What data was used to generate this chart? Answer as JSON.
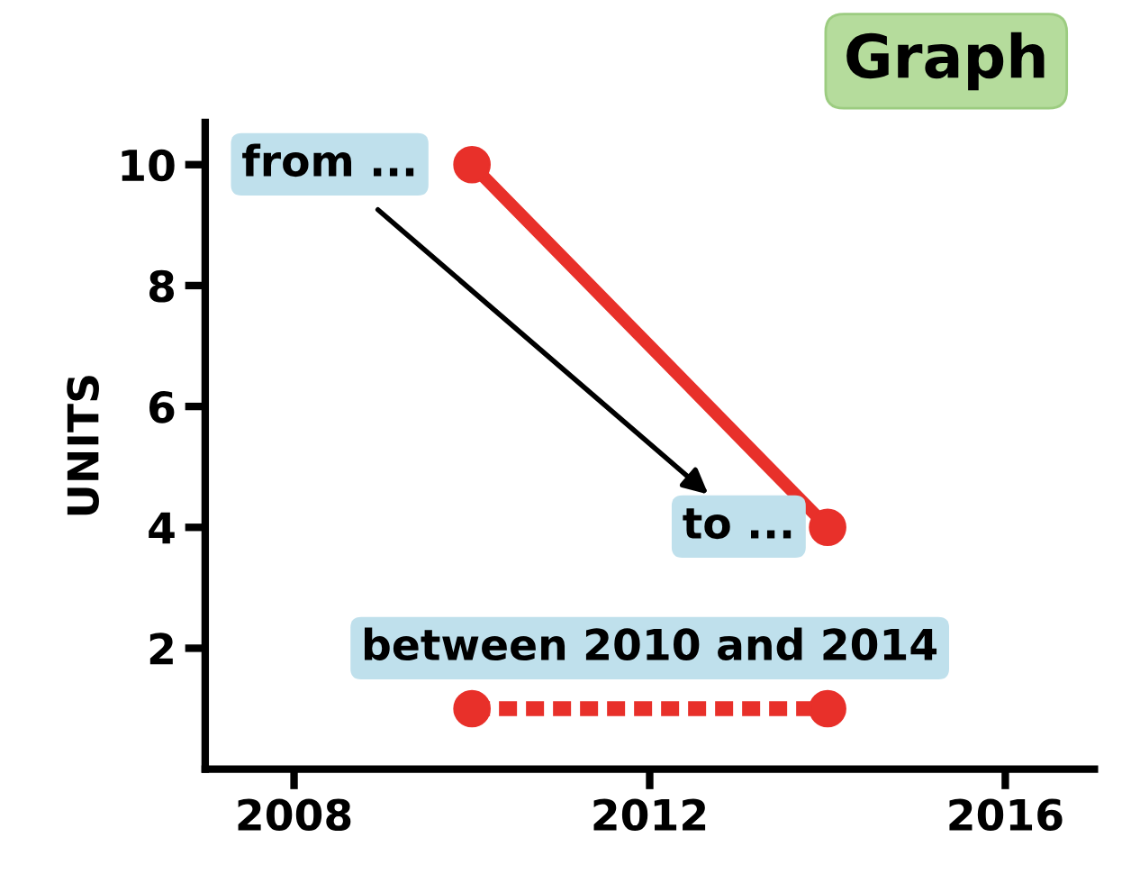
{
  "chart_data": {
    "type": "line",
    "title": "Graph",
    "ylabel": "UNITS",
    "xlim": [
      "2007",
      "2017"
    ],
    "xticks": [
      "2008",
      "2012",
      "2016"
    ],
    "ylim": [
      0,
      10.7
    ],
    "yticks": [
      2,
      4,
      6,
      8,
      10
    ],
    "series": [
      {
        "color": "#e8302a",
        "x": [
          "2010",
          "2014"
        ],
        "values": [
          10,
          4
        ],
        "line_style": "solid",
        "marker": "circle"
      },
      {
        "color": "#e8302a",
        "x": [
          "2010",
          "2014"
        ],
        "values": [
          1,
          1
        ],
        "line_style": "dotted",
        "marker": "circle"
      }
    ],
    "annotations": [
      "from ...",
      "to ...",
      "between 2010 and 2014"
    ],
    "grid": false
  }
}
